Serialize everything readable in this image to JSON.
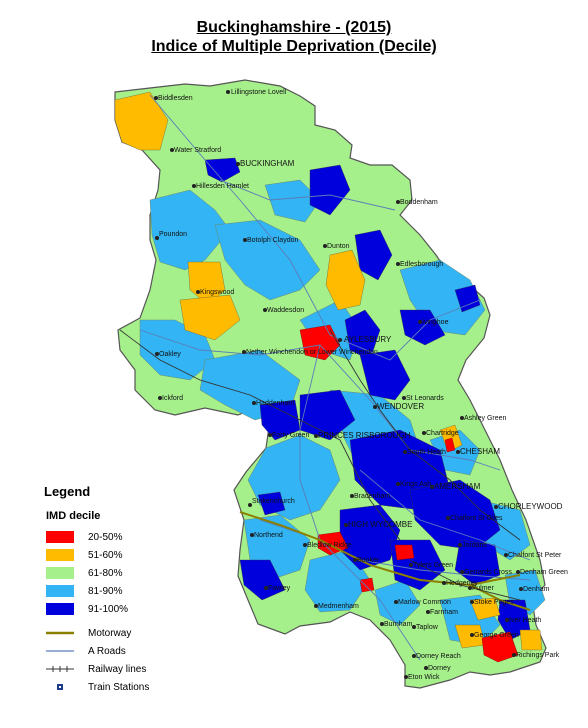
{
  "title": {
    "line1": "Buckinghamshire - (2015)",
    "line2": "Indice of Multiple Deprivation (Decile)"
  },
  "legend": {
    "title": "Legend",
    "subtitle": "IMD decile",
    "classes": [
      {
        "label": "20-50%",
        "color": "#ff0000"
      },
      {
        "label": "51-60%",
        "color": "#ffbb00"
      },
      {
        "label": "61-80%",
        "color": "#a6f08c"
      },
      {
        "label": "81-90%",
        "color": "#33b4f4"
      },
      {
        "label": "91-100%",
        "color": "#0000dd"
      }
    ],
    "motorway": "Motorway",
    "a_roads": "A Roads",
    "railway": "Railway lines",
    "stations": "Train Stations"
  },
  "places": [
    "Lillingstone Lovell",
    "Biddlesden",
    "Water Stratford",
    "BUCKINGHAM",
    "Hillesden Hamlet",
    "Boddenham",
    "Poundon",
    "Botolph Claydon",
    "Dunton",
    "Edlesborough",
    "Kingswood",
    "Waddesdon",
    "Ivinghoe",
    "Oakley",
    "Nether Winchendon or Lower Winchendon",
    "AYLESBURY",
    "Ickford",
    "Haddenham",
    "St Leonards",
    "WENDOVER",
    "Ashley Green",
    "Chartridge",
    "South Heath",
    "CHESHAM",
    "Forty Green",
    "PRINCES RISBOROUGH",
    "Stokenchurch",
    "Bradenham",
    "Kings Ash",
    "AMERSHAM",
    "CHORLEYWOOD",
    "Chalfont St Giles",
    "Northend",
    "HIGH WYCOMBE",
    "Bledlow Ridge",
    "Booker",
    "Jordans",
    "Chalfont St Peter",
    "Fawley",
    "Tylers Green",
    "Gerrards Cross",
    "Denham Green",
    "Fulmer",
    "Hedgerley",
    "Denham",
    "Medmenham",
    "Marlow Common",
    "Farnham",
    "Stoke Poges",
    "Iver Heath",
    "Burnham",
    "Taplow",
    "George Green",
    "Dorney Reach",
    "Richings Park",
    "Dorney",
    "Eton Wick"
  ]
}
